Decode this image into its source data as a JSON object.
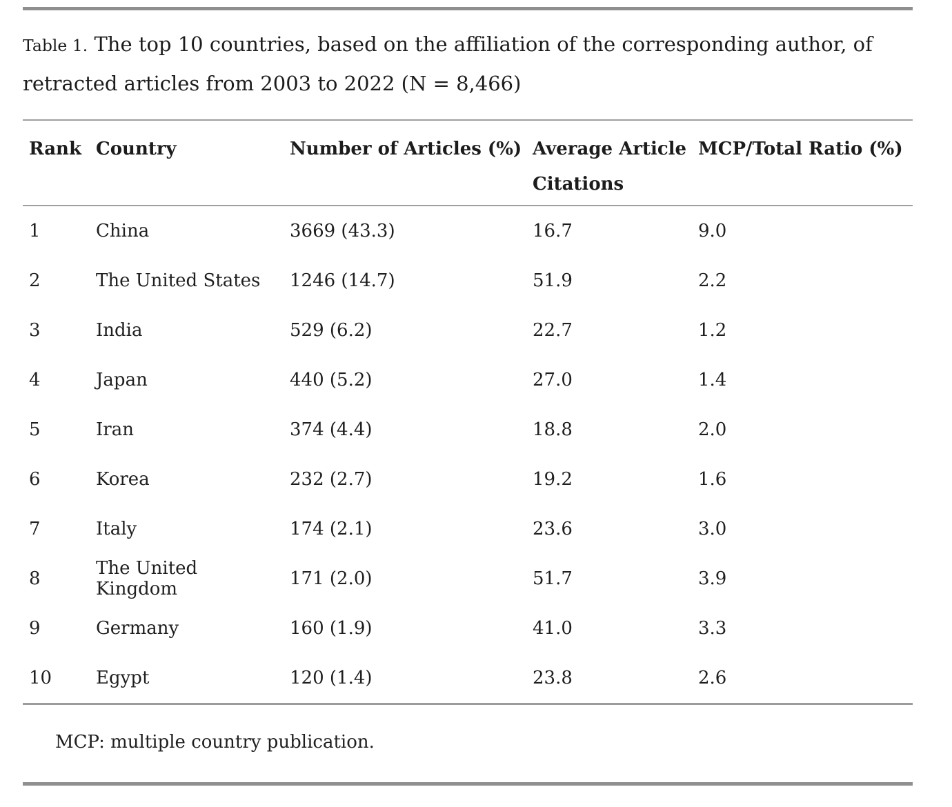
{
  "caption": {
    "label": "Table 1.",
    "text": "The top 10 countries, based on the affiliation of the corresponding author, of retracted articles from 2003 to 2022 (N = 8,466)"
  },
  "table": {
    "columns": [
      "Rank",
      "Country",
      "Number of Articles (%)",
      "Average Article Citations",
      "MCP/Total Ratio (%)"
    ],
    "column_keys": [
      "rank",
      "country",
      "articles",
      "citations",
      "mcp-ratio"
    ],
    "rows": [
      [
        "1",
        "China",
        "3669 (43.3)",
        "16.7",
        "9.0"
      ],
      [
        "2",
        "The United States",
        "1246 (14.7)",
        "51.9",
        "2.2"
      ],
      [
        "3",
        "India",
        "529 (6.2)",
        "22.7",
        "1.2"
      ],
      [
        "4",
        "Japan",
        "440 (5.2)",
        "27.0",
        "1.4"
      ],
      [
        "5",
        "Iran",
        "374 (4.4)",
        "18.8",
        "2.0"
      ],
      [
        "6",
        "Korea",
        "232 (2.7)",
        "19.2",
        "1.6"
      ],
      [
        "7",
        "Italy",
        "174 (2.1)",
        "23.6",
        "3.0"
      ],
      [
        "8",
        "The United Kingdom",
        "171 (2.0)",
        "51.7",
        "3.9"
      ],
      [
        "9",
        "Germany",
        "160 (1.9)",
        "41.0",
        "3.3"
      ],
      [
        "10",
        "Egypt",
        "120 (1.4)",
        "23.8",
        "2.6"
      ]
    ]
  },
  "footnote": "MCP: multiple country publication.",
  "colors": {
    "text": "#1f1f1f",
    "rule_thick": "#8f8f8f",
    "rule_thin": "#9e9e9e",
    "background": "#ffffff"
  }
}
